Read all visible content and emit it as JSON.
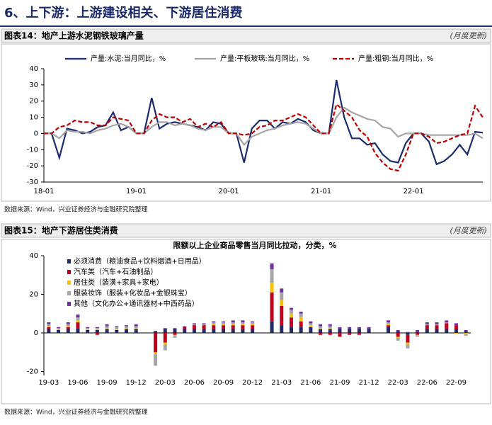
{
  "header": {
    "title": "6、上下游：上游建设相关、下游居住消费"
  },
  "chart_data": [
    {
      "type": "line",
      "figure_label": "图表14：地产上游水泥钢铁玻璃产量",
      "update_note": "(月度更新)",
      "source": "数据来源：Wind，兴业证券经济与金融研究院整理",
      "categories": [
        "18-01",
        null,
        null,
        null,
        null,
        null,
        null,
        null,
        null,
        null,
        null,
        null,
        "19-01",
        null,
        null,
        null,
        null,
        null,
        null,
        null,
        null,
        null,
        null,
        null,
        "20-01",
        null,
        null,
        null,
        null,
        null,
        null,
        null,
        null,
        null,
        null,
        null,
        "21-01",
        null,
        null,
        null,
        null,
        null,
        null,
        null,
        null,
        null,
        null,
        null,
        "22-01",
        null,
        null,
        null,
        null,
        null,
        null,
        null,
        null,
        null
      ],
      "ylim": [
        -30,
        40
      ],
      "yticks": [
        -30,
        -20,
        -10,
        0,
        10,
        20,
        30,
        40
      ],
      "legend": "top",
      "series": [
        {
          "name": "产量:水泥:当月同比，%",
          "color": "#1c2c6e",
          "dash": false,
          "values": [
            0,
            0,
            -15,
            3,
            2,
            0,
            1,
            4,
            5,
            13,
            2,
            4,
            0,
            0,
            22,
            3,
            6,
            7,
            6,
            5,
            4,
            2,
            7,
            6,
            0,
            0,
            -18,
            3,
            8,
            8,
            3,
            7,
            6,
            9,
            7,
            2,
            0,
            0,
            33,
            10,
            -3,
            -3,
            -7,
            -6,
            -13,
            -17,
            -18,
            -6,
            0,
            0,
            -5,
            -19,
            -17,
            -13,
            -7,
            -13,
            1,
            0.5
          ]
        },
        {
          "name": "产量:平板玻璃:当月同比，%",
          "color": "#a5a5a5",
          "dash": false,
          "values": [
            0,
            0,
            -3,
            2,
            1,
            1,
            0,
            2,
            3,
            5,
            6,
            4,
            0,
            0,
            4,
            7,
            7,
            5,
            6,
            5,
            3,
            2,
            4,
            4,
            0,
            0,
            -7,
            -2,
            0,
            2,
            3,
            5,
            6,
            7,
            6,
            3,
            0,
            0,
            10,
            16,
            13,
            11,
            9,
            8,
            4,
            3,
            -2,
            0,
            0,
            0,
            -1,
            -1,
            -1,
            -1,
            -1,
            -1,
            0,
            -3
          ]
        },
        {
          "name": "产量:粗钢:当月同比，%",
          "color": "#c00000",
          "dash": true,
          "values": [
            0,
            0,
            4,
            5,
            8,
            7,
            7,
            5,
            5,
            10,
            9,
            8,
            0,
            0,
            8,
            12,
            10,
            10,
            7,
            9,
            4,
            6,
            4,
            7,
            0,
            0,
            -1,
            0,
            4,
            5,
            8,
            8,
            10,
            12,
            10,
            5,
            0,
            0,
            18,
            14,
            10,
            2,
            -2,
            -12,
            -18,
            -22,
            -23,
            -13,
            0,
            0,
            -2,
            -6,
            -5,
            -3,
            -1,
            0,
            17,
            10
          ]
        }
      ]
    },
    {
      "type": "stacked_bar",
      "figure_label": "图表15：地产下游居住类消费",
      "update_note": "(月度更新)",
      "title": "限额以上企业商品零售当月同比拉动，分类，%",
      "source": "数据来源：Wind，兴业证券经济与金融研究院整理",
      "categories": [
        "19-03",
        null,
        null,
        "19-06",
        null,
        null,
        "19-09",
        null,
        null,
        "19-12",
        null,
        null,
        "20-03",
        null,
        null,
        "20-06",
        null,
        null,
        "20-09",
        null,
        null,
        "20-12",
        null,
        null,
        "21-03",
        null,
        null,
        "21-06",
        null,
        null,
        "21-09",
        null,
        null,
        "21-12",
        null,
        null,
        "22-03",
        null,
        null,
        "22-06",
        null,
        null,
        "22-09",
        null
      ],
      "ylim": [
        -22,
        40
      ],
      "yticks": [
        -20,
        0,
        20,
        40
      ],
      "legend": "upper left",
      "series": [
        {
          "name": "必须消费（粮油食品+饮料烟酒+日用品）",
          "color": "#1f2a6b",
          "values": [
            2,
            1.5,
            2,
            2.5,
            1.5,
            1.5,
            2,
            1.5,
            2,
            2,
            null,
            1,
            2,
            2,
            2,
            2,
            2,
            2,
            2,
            2,
            2,
            2,
            null,
            6,
            4,
            3,
            3,
            3,
            2,
            2,
            2,
            2,
            2,
            2,
            null,
            3,
            1,
            -1,
            0.5,
            2,
            2,
            2,
            2,
            1
          ]
        },
        {
          "name": "汽车类（汽车+石油制品）",
          "color": "#c0001c",
          "values": [
            1,
            0,
            1,
            3,
            0,
            -1,
            0,
            0,
            0,
            0,
            null,
            -10,
            -5,
            -1,
            1,
            2,
            2,
            2,
            2,
            2,
            2,
            2,
            null,
            15,
            10,
            5,
            3,
            0,
            -1,
            -1,
            -2,
            -1,
            -1,
            0,
            null,
            1,
            -2,
            -4,
            -1,
            2,
            2,
            3,
            2,
            0
          ]
        },
        {
          "name": "居住类（装潢+家具+家电）",
          "color": "#f5c400",
          "values": [
            0.5,
            0.5,
            0.5,
            1,
            0.5,
            0.5,
            0.5,
            0.5,
            0.5,
            0.5,
            null,
            -1,
            -1,
            -0.5,
            0,
            0,
            0,
            0.5,
            0.5,
            0.5,
            0.5,
            0.5,
            null,
            5,
            3,
            2,
            2,
            1,
            0.5,
            0.5,
            0,
            0,
            0,
            0,
            null,
            0.5,
            -0.5,
            -1,
            -0.5,
            0,
            0,
            0,
            -0.5,
            -0.5
          ]
        },
        {
          "name": "服装妆饰（服装+化妆品+金银珠宝）",
          "color": "#a6a6a6",
          "values": [
            1,
            0.5,
            1,
            1.5,
            0.5,
            0.5,
            1,
            1,
            1,
            1,
            null,
            -6,
            -3,
            -1,
            0,
            0.5,
            0.5,
            1,
            1,
            1,
            1,
            1,
            null,
            7,
            4,
            2,
            2,
            1,
            1,
            1,
            0,
            0,
            0,
            0,
            null,
            1,
            -1.5,
            -2,
            -0.5,
            0.5,
            0.5,
            0.5,
            0,
            -1
          ]
        },
        {
          "name": "其他（文化办公+通讯器材+中西药品）",
          "color": "#7030a0",
          "values": [
            1,
            0.5,
            1,
            1.5,
            0.5,
            0.5,
            1,
            0.5,
            0.5,
            1,
            null,
            0,
            0.5,
            0.5,
            0.5,
            0.5,
            0.5,
            0.5,
            0.5,
            1,
            1,
            0.5,
            null,
            3,
            2,
            1,
            1,
            1,
            1,
            1,
            1,
            1,
            1,
            1,
            null,
            1,
            0.5,
            0.5,
            1,
            1,
            1,
            1,
            1,
            0.5
          ]
        }
      ]
    }
  ]
}
